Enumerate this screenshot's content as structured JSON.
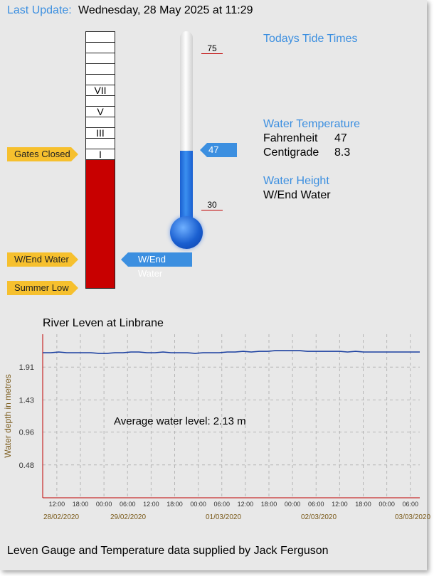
{
  "header": {
    "last_update_label": "Last Update:",
    "last_update_value": "Wednesday, 28 May 2025 at 11:29"
  },
  "gauge": {
    "labels": [
      "VII",
      "V",
      "III",
      "I"
    ],
    "fill_fraction": 0.5,
    "markers": {
      "gates_closed": "Gates Closed",
      "wend_water": "W/End Water",
      "summer_low": "Summer Low",
      "current": "W/End Water"
    }
  },
  "thermometer": {
    "value": 47,
    "min": 30,
    "max": 75,
    "min_label": "30",
    "max_label": "75",
    "value_label": "47"
  },
  "info": {
    "tide_title": "Todays Tide Times",
    "temp_title": "Water Temperature",
    "fahrenheit_label": "Fahrenheit",
    "fahrenheit_value": "47",
    "centigrade_label": "Centigrade",
    "centigrade_value": "8.3",
    "height_title": "Water Height",
    "height_value": "W/End Water"
  },
  "chart_data": {
    "type": "line",
    "title": "River Leven at Linbrane",
    "ylabel": "Water depth in metres",
    "yticks": [
      "1.91",
      "1.43",
      "0.96",
      "0.48"
    ],
    "ytick_values": [
      1.91,
      1.43,
      0.96,
      0.48
    ],
    "ylim": [
      0,
      2.39
    ],
    "xticks": [
      "12:00",
      "18:00",
      "00:00",
      "06:00",
      "12:00",
      "18:00",
      "00:00",
      "06:00",
      "12:00",
      "18:00",
      "00:00",
      "06:00",
      "12:00",
      "18:00",
      "00:00",
      "06:00"
    ],
    "date_labels": [
      "28/02/2020",
      "29/02/2020",
      "01/03/2020",
      "02/03/2020",
      "03/03/2020"
    ],
    "annotation": "Average water level: 2.13 m",
    "grid": true,
    "series": [
      {
        "values": [
          2.12,
          2.12,
          2.13,
          2.12,
          2.12,
          2.12,
          2.12,
          2.11,
          2.11,
          2.12,
          2.12,
          2.13,
          2.13,
          2.12,
          2.12,
          2.13,
          2.12,
          2.12,
          2.12,
          2.11,
          2.12,
          2.12,
          2.12,
          2.13,
          2.13,
          2.14,
          2.13,
          2.14,
          2.14,
          2.15,
          2.15,
          2.15,
          2.15,
          2.14,
          2.14,
          2.14,
          2.14,
          2.14,
          2.13,
          2.14,
          2.13,
          2.13,
          2.13,
          2.13,
          2.13,
          2.13,
          2.13,
          2.13
        ]
      }
    ]
  },
  "footer": "Leven Gauge and Temperature data supplied by Jack Ferguson",
  "colors": {
    "accent": "#3c8fe0",
    "gauge_fill": "#c80000",
    "tag": "#f6c02e",
    "line": "#1a3fa0"
  }
}
